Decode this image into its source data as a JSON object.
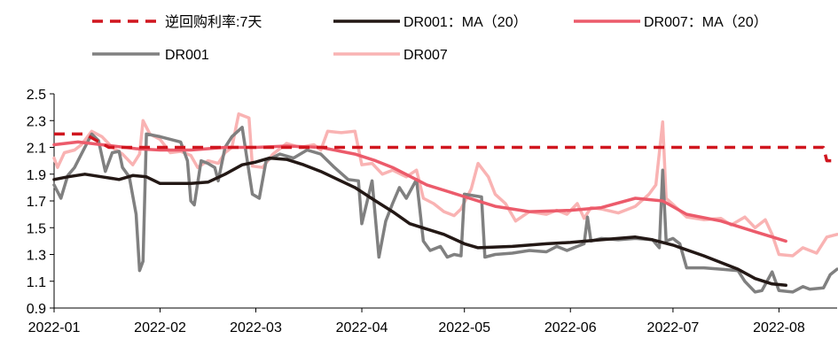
{
  "chart_data": {
    "type": "line",
    "title": "",
    "xlabel": "",
    "ylabel": "",
    "ylim": [
      0.9,
      2.5
    ],
    "yticks": [
      "0.9",
      "1.1",
      "1.3",
      "1.5",
      "1.7",
      "1.9",
      "2.1",
      "2.3",
      "2.5"
    ],
    "xlim": [
      "2022-01-01",
      "2022-08-18"
    ],
    "xticks": [
      {
        "date": "2022-01-01",
        "label": "2022-01"
      },
      {
        "date": "2022-02-01",
        "label": "2022-02"
      },
      {
        "date": "2022-03-01",
        "label": "2022-03"
      },
      {
        "date": "2022-04-01",
        "label": "2022-04"
      },
      {
        "date": "2022-05-01",
        "label": "2022-05"
      },
      {
        "date": "2022-06-01",
        "label": "2022-06"
      },
      {
        "date": "2022-07-01",
        "label": "2022-07"
      },
      {
        "date": "2022-08-01",
        "label": "2022-08"
      }
    ],
    "grid": false,
    "legend_position": "top",
    "series": [
      {
        "name": "逆回购利率:7天",
        "color": "#d0161f",
        "dash": true,
        "width": 3.5,
        "points": [
          [
            "2022-01-01",
            2.2
          ],
          [
            "2022-01-10",
            2.2
          ],
          [
            "2022-01-17",
            2.1
          ],
          [
            "2022-08-14",
            2.1
          ],
          [
            "2022-08-15",
            2.0
          ],
          [
            "2022-08-18",
            2.0
          ]
        ]
      },
      {
        "name": "DR001：MA（20）",
        "color": "#231815",
        "dash": false,
        "width": 3.5,
        "points": [
          [
            "2022-01-01",
            1.86
          ],
          [
            "2022-01-05",
            1.88
          ],
          [
            "2022-01-10",
            1.9
          ],
          [
            "2022-01-15",
            1.88
          ],
          [
            "2022-01-20",
            1.86
          ],
          [
            "2022-01-24",
            1.89
          ],
          [
            "2022-01-28",
            1.88
          ],
          [
            "2022-02-01",
            1.83
          ],
          [
            "2022-02-10",
            1.83
          ],
          [
            "2022-02-15",
            1.84
          ],
          [
            "2022-02-20",
            1.9
          ],
          [
            "2022-02-25",
            1.97
          ],
          [
            "2022-03-01",
            1.99
          ],
          [
            "2022-03-05",
            2.02
          ],
          [
            "2022-03-10",
            2.01
          ],
          [
            "2022-03-15",
            1.97
          ],
          [
            "2022-03-20",
            1.92
          ],
          [
            "2022-03-25",
            1.86
          ],
          [
            "2022-03-30",
            1.8
          ],
          [
            "2022-04-05",
            1.7
          ],
          [
            "2022-04-10",
            1.62
          ],
          [
            "2022-04-15",
            1.53
          ],
          [
            "2022-04-20",
            1.49
          ],
          [
            "2022-04-25",
            1.45
          ],
          [
            "2022-05-01",
            1.38
          ],
          [
            "2022-05-05",
            1.35
          ],
          [
            "2022-05-15",
            1.36
          ],
          [
            "2022-05-25",
            1.38
          ],
          [
            "2022-06-01",
            1.39
          ],
          [
            "2022-06-10",
            1.41
          ],
          [
            "2022-06-20",
            1.43
          ],
          [
            "2022-06-25",
            1.41
          ],
          [
            "2022-07-01",
            1.37
          ],
          [
            "2022-07-10",
            1.29
          ],
          [
            "2022-07-20",
            1.19
          ],
          [
            "2022-07-25",
            1.12
          ],
          [
            "2022-07-30",
            1.08
          ],
          [
            "2022-08-03",
            1.07
          ]
        ]
      },
      {
        "name": "DR007：MA（20）",
        "color": "#ec5b6b",
        "dash": false,
        "width": 3.5,
        "points": [
          [
            "2022-01-01",
            2.12
          ],
          [
            "2022-01-08",
            2.14
          ],
          [
            "2022-01-15",
            2.12
          ],
          [
            "2022-01-25",
            2.09
          ],
          [
            "2022-02-01",
            2.08
          ],
          [
            "2022-02-10",
            2.08
          ],
          [
            "2022-02-20",
            2.1
          ],
          [
            "2022-03-01",
            2.1
          ],
          [
            "2022-03-10",
            2.11
          ],
          [
            "2022-03-20",
            2.1
          ],
          [
            "2022-03-30",
            2.05
          ],
          [
            "2022-04-05",
            2.0
          ],
          [
            "2022-04-10",
            1.95
          ],
          [
            "2022-04-20",
            1.82
          ],
          [
            "2022-04-30",
            1.74
          ],
          [
            "2022-05-10",
            1.66
          ],
          [
            "2022-05-20",
            1.62
          ],
          [
            "2022-06-01",
            1.63
          ],
          [
            "2022-06-10",
            1.65
          ],
          [
            "2022-06-20",
            1.72
          ],
          [
            "2022-06-28",
            1.7
          ],
          [
            "2022-07-05",
            1.6
          ],
          [
            "2022-07-15",
            1.55
          ],
          [
            "2022-07-25",
            1.47
          ],
          [
            "2022-08-03",
            1.4
          ]
        ]
      },
      {
        "name": "DR001",
        "color": "#808080",
        "dash": false,
        "width": 3.5,
        "points": [
          [
            "2022-01-01",
            1.82
          ],
          [
            "2022-01-03",
            1.72
          ],
          [
            "2022-01-05",
            1.89
          ],
          [
            "2022-01-07",
            1.95
          ],
          [
            "2022-01-09",
            2.05
          ],
          [
            "2022-01-12",
            2.2
          ],
          [
            "2022-01-14",
            2.15
          ],
          [
            "2022-01-16",
            1.92
          ],
          [
            "2022-01-18",
            2.06
          ],
          [
            "2022-01-20",
            2.07
          ],
          [
            "2022-01-21",
            1.95
          ],
          [
            "2022-01-23",
            1.88
          ],
          [
            "2022-01-25",
            1.6
          ],
          [
            "2022-01-26",
            1.18
          ],
          [
            "2022-01-27",
            1.25
          ],
          [
            "2022-01-28",
            2.2
          ],
          [
            "2022-02-01",
            2.18
          ],
          [
            "2022-02-07",
            2.14
          ],
          [
            "2022-02-09",
            2.0
          ],
          [
            "2022-02-10",
            1.7
          ],
          [
            "2022-02-11",
            1.67
          ],
          [
            "2022-02-13",
            2.0
          ],
          [
            "2022-02-15",
            1.98
          ],
          [
            "2022-02-17",
            1.95
          ],
          [
            "2022-02-18",
            1.85
          ],
          [
            "2022-02-20",
            2.1
          ],
          [
            "2022-02-22",
            2.18
          ],
          [
            "2022-02-25",
            2.25
          ],
          [
            "2022-02-28",
            1.75
          ],
          [
            "2022-03-02",
            1.72
          ],
          [
            "2022-03-04",
            2.0
          ],
          [
            "2022-03-08",
            2.05
          ],
          [
            "2022-03-12",
            2.02
          ],
          [
            "2022-03-16",
            2.08
          ],
          [
            "2022-03-20",
            2.05
          ],
          [
            "2022-03-24",
            1.95
          ],
          [
            "2022-03-28",
            1.86
          ],
          [
            "2022-03-31",
            1.85
          ],
          [
            "2022-04-01",
            1.53
          ],
          [
            "2022-04-04",
            1.85
          ],
          [
            "2022-04-06",
            1.28
          ],
          [
            "2022-04-08",
            1.55
          ],
          [
            "2022-04-10",
            1.68
          ],
          [
            "2022-04-12",
            1.8
          ],
          [
            "2022-04-14",
            1.72
          ],
          [
            "2022-04-17",
            1.86
          ],
          [
            "2022-04-19",
            1.4
          ],
          [
            "2022-04-21",
            1.33
          ],
          [
            "2022-04-24",
            1.36
          ],
          [
            "2022-04-26",
            1.28
          ],
          [
            "2022-04-28",
            1.3
          ],
          [
            "2022-04-30",
            1.29
          ],
          [
            "2022-05-01",
            1.75
          ],
          [
            "2022-05-06",
            1.73
          ],
          [
            "2022-05-07",
            1.28
          ],
          [
            "2022-05-10",
            1.3
          ],
          [
            "2022-05-15",
            1.31
          ],
          [
            "2022-05-20",
            1.33
          ],
          [
            "2022-05-25",
            1.32
          ],
          [
            "2022-05-28",
            1.36
          ],
          [
            "2022-05-31",
            1.33
          ],
          [
            "2022-06-02",
            1.35
          ],
          [
            "2022-06-05",
            1.38
          ],
          [
            "2022-06-06",
            1.58
          ],
          [
            "2022-06-07",
            1.4
          ],
          [
            "2022-06-10",
            1.42
          ],
          [
            "2022-06-15",
            1.41
          ],
          [
            "2022-06-20",
            1.42
          ],
          [
            "2022-06-25",
            1.41
          ],
          [
            "2022-06-27",
            1.35
          ],
          [
            "2022-06-28",
            1.93
          ],
          [
            "2022-06-29",
            1.4
          ],
          [
            "2022-07-01",
            1.42
          ],
          [
            "2022-07-03",
            1.38
          ],
          [
            "2022-07-05",
            1.2
          ],
          [
            "2022-07-10",
            1.2
          ],
          [
            "2022-07-15",
            1.19
          ],
          [
            "2022-07-20",
            1.18
          ],
          [
            "2022-07-22",
            1.1
          ],
          [
            "2022-07-25",
            1.02
          ],
          [
            "2022-07-27",
            1.03
          ],
          [
            "2022-07-30",
            1.17
          ],
          [
            "2022-08-01",
            1.03
          ],
          [
            "2022-08-05",
            1.02
          ],
          [
            "2022-08-08",
            1.06
          ],
          [
            "2022-08-10",
            1.04
          ],
          [
            "2022-08-14",
            1.05
          ],
          [
            "2022-08-16",
            1.15
          ],
          [
            "2022-08-18",
            1.19
          ]
        ]
      },
      {
        "name": "DR007",
        "color": "#f9b3b3",
        "dash": false,
        "width": 3.5,
        "points": [
          [
            "2022-01-01",
            2.02
          ],
          [
            "2022-01-02",
            1.95
          ],
          [
            "2022-01-04",
            2.06
          ],
          [
            "2022-01-07",
            2.08
          ],
          [
            "2022-01-09",
            2.12
          ],
          [
            "2022-01-12",
            2.22
          ],
          [
            "2022-01-15",
            2.18
          ],
          [
            "2022-01-18",
            2.1
          ],
          [
            "2022-01-21",
            2.05
          ],
          [
            "2022-01-24",
            1.97
          ],
          [
            "2022-01-26",
            2.05
          ],
          [
            "2022-01-27",
            2.3
          ],
          [
            "2022-01-29",
            2.2
          ],
          [
            "2022-02-01",
            2.16
          ],
          [
            "2022-02-04",
            2.06
          ],
          [
            "2022-02-07",
            2.07
          ],
          [
            "2022-02-10",
            2.04
          ],
          [
            "2022-02-12",
            1.95
          ],
          [
            "2022-02-15",
            2.0
          ],
          [
            "2022-02-18",
            1.98
          ],
          [
            "2022-02-20",
            2.06
          ],
          [
            "2022-02-22",
            2.1
          ],
          [
            "2022-02-24",
            2.35
          ],
          [
            "2022-02-27",
            2.32
          ],
          [
            "2022-02-28",
            1.96
          ],
          [
            "2022-03-03",
            1.95
          ],
          [
            "2022-03-06",
            2.05
          ],
          [
            "2022-03-10",
            2.13
          ],
          [
            "2022-03-14",
            2.1
          ],
          [
            "2022-03-18",
            2.12
          ],
          [
            "2022-03-20",
            2.08
          ],
          [
            "2022-03-22",
            2.22
          ],
          [
            "2022-03-26",
            2.21
          ],
          [
            "2022-03-30",
            2.22
          ],
          [
            "2022-04-01",
            1.97
          ],
          [
            "2022-04-04",
            1.98
          ],
          [
            "2022-04-07",
            1.9
          ],
          [
            "2022-04-10",
            1.93
          ],
          [
            "2022-04-14",
            1.88
          ],
          [
            "2022-04-17",
            1.93
          ],
          [
            "2022-04-19",
            1.72
          ],
          [
            "2022-04-22",
            1.68
          ],
          [
            "2022-04-25",
            1.62
          ],
          [
            "2022-04-28",
            1.59
          ],
          [
            "2022-04-30",
            1.64
          ],
          [
            "2022-05-03",
            1.79
          ],
          [
            "2022-05-05",
            1.98
          ],
          [
            "2022-05-08",
            1.88
          ],
          [
            "2022-05-10",
            1.75
          ],
          [
            "2022-05-13",
            1.68
          ],
          [
            "2022-05-16",
            1.55
          ],
          [
            "2022-05-20",
            1.62
          ],
          [
            "2022-05-25",
            1.6
          ],
          [
            "2022-05-28",
            1.63
          ],
          [
            "2022-05-31",
            1.6
          ],
          [
            "2022-06-03",
            1.68
          ],
          [
            "2022-06-05",
            1.57
          ],
          [
            "2022-06-07",
            1.65
          ],
          [
            "2022-06-10",
            1.64
          ],
          [
            "2022-06-15",
            1.61
          ],
          [
            "2022-06-20",
            1.66
          ],
          [
            "2022-06-24",
            1.75
          ],
          [
            "2022-06-26",
            1.82
          ],
          [
            "2022-06-28",
            2.29
          ],
          [
            "2022-06-29",
            1.72
          ],
          [
            "2022-07-02",
            1.65
          ],
          [
            "2022-07-05",
            1.58
          ],
          [
            "2022-07-10",
            1.56
          ],
          [
            "2022-07-15",
            1.57
          ],
          [
            "2022-07-18",
            1.52
          ],
          [
            "2022-07-22",
            1.58
          ],
          [
            "2022-07-25",
            1.5
          ],
          [
            "2022-07-28",
            1.56
          ],
          [
            "2022-07-30",
            1.45
          ],
          [
            "2022-08-01",
            1.3
          ],
          [
            "2022-08-05",
            1.29
          ],
          [
            "2022-08-08",
            1.35
          ],
          [
            "2022-08-12",
            1.31
          ],
          [
            "2022-08-15",
            1.43
          ],
          [
            "2022-08-18",
            1.45
          ]
        ]
      }
    ]
  }
}
